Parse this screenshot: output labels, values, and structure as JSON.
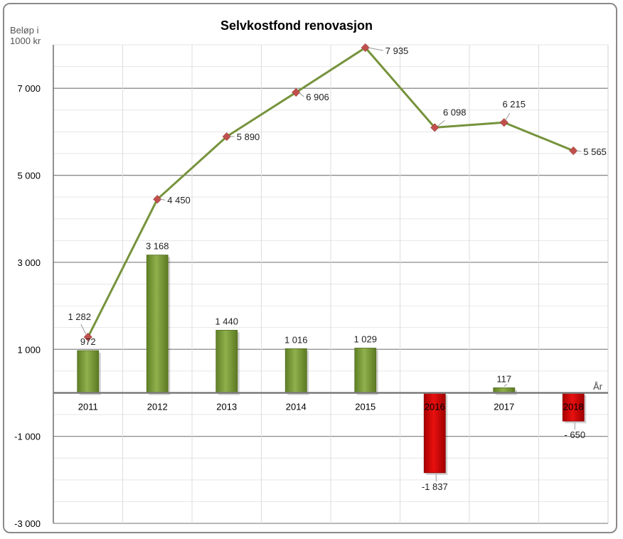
{
  "chart_data": {
    "type": "bar",
    "title": "Selvkostfond renovasjon",
    "ylabel_line1": "Beløp i",
    "ylabel_line2": "1000 kr",
    "xlabel": "År",
    "ylim": [
      -3000,
      8000
    ],
    "yticks": [
      -3000,
      -1000,
      1000,
      3000,
      5000,
      7000
    ],
    "ytick_labels": [
      "-3 000",
      "-1 000",
      "1 000",
      "3 000",
      "5 000",
      "7 000"
    ],
    "categories": [
      "2011",
      "2012",
      "2013",
      "2014",
      "2015",
      "2016",
      "2017",
      "2018"
    ],
    "grid": true,
    "series": [
      {
        "type": "bar",
        "values": [
          972,
          3168,
          1440,
          1016,
          1029,
          -1837,
          117,
          -650
        ],
        "labels": [
          "972",
          "3 168",
          "1 440",
          "1 016",
          "1 029",
          "-1 837",
          "117",
          "- 650"
        ],
        "positive_color": "#7a9a3a",
        "negative_color": "#cc0000"
      },
      {
        "type": "line",
        "values": [
          1282,
          4450,
          5890,
          6906,
          7935,
          6098,
          6215,
          5565
        ],
        "labels": [
          "1 282",
          "4 450",
          "5 890",
          "6 906",
          "7 935",
          "6 098",
          "6 215",
          "5 565"
        ],
        "color": "#76933c",
        "marker_color": "#c0504d"
      }
    ]
  }
}
